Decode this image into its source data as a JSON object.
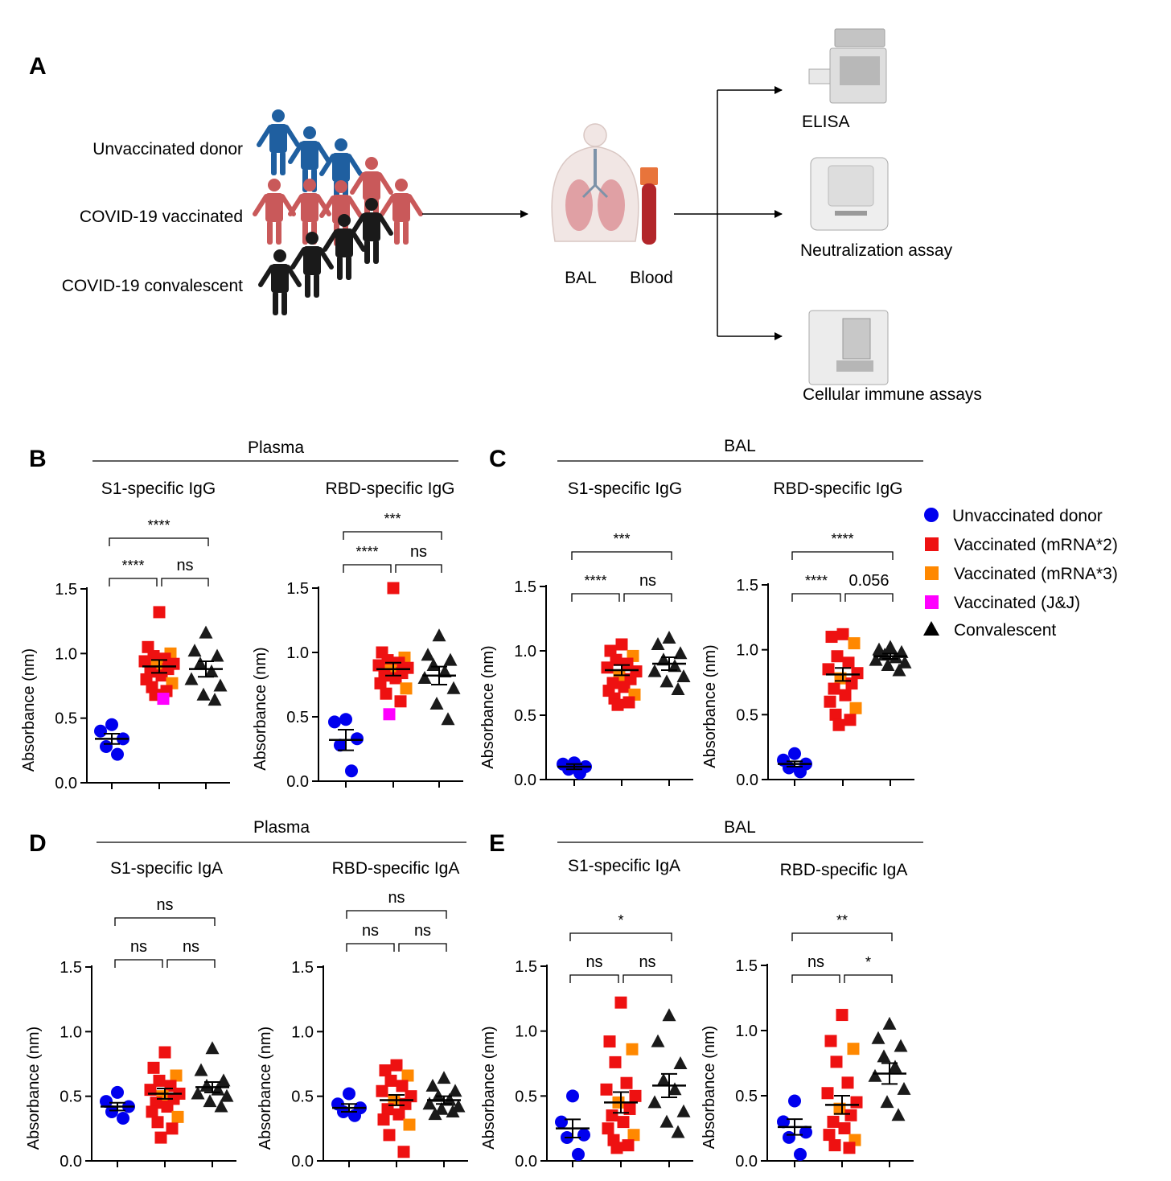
{
  "panel_a": {
    "label": "A",
    "groups": [
      "Unvaccinated donor",
      "COVID-19 vaccinated",
      "COVID-19 convalescent"
    ],
    "samples": [
      "BAL",
      "Blood"
    ],
    "assays": [
      "ELISA",
      "Neutralization assay",
      "Cellular immune assays"
    ]
  },
  "panel_labels": {
    "b": "B",
    "c": "C",
    "d": "D",
    "e": "E"
  },
  "section_titles": {
    "b": "Plasma",
    "c": "BAL",
    "d": "Plasma",
    "e": "BAL"
  },
  "legend": [
    {
      "label": "Unvaccinated donor",
      "shape": "circle",
      "color": "#0000ee"
    },
    {
      "label": "Vaccinated (mRNA*2)",
      "shape": "square",
      "color": "#ee1111"
    },
    {
      "label": "Vaccinated (mRNA*3)",
      "shape": "square",
      "color": "#ff8800"
    },
    {
      "label": "Vaccinated (J&J)",
      "shape": "square",
      "color": "#ff00ff"
    },
    {
      "label": "Convalescent",
      "shape": "triangle",
      "color": "#000000"
    }
  ],
  "colors": {
    "unvaccinated": "#1f5fa0",
    "vaccinated": "#c9595a",
    "convalescent": "#1a1a1a",
    "blue_point": "#0000ee",
    "red_point": "#ee1111",
    "orange_point": "#ff8800",
    "magenta_point": "#ff00ff"
  },
  "chart_data": [
    {
      "type": "scatter",
      "id": "b1",
      "title": "S1-specific IgG",
      "ylabel": "Absorbance (nm)",
      "ylim": [
        0,
        1.5
      ],
      "yticks": [
        "0.0",
        "0.5",
        "1.0",
        "1.5"
      ],
      "series": [
        {
          "name": "Unvaccinated donor",
          "values": [
            0.45,
            0.4,
            0.34,
            0.28,
            0.22
          ],
          "mean": 0.34,
          "sem": 0.04
        },
        {
          "name": "Vaccinated",
          "values": [
            1.32,
            1.05,
            1.0,
            0.98,
            0.96,
            0.94,
            0.92,
            0.9,
            0.88,
            0.86,
            0.83,
            0.8,
            0.77,
            0.74,
            0.71,
            0.68,
            0.65
          ],
          "mean": 0.9,
          "sem": 0.05
        },
        {
          "name": "Convalescent",
          "values": [
            1.16,
            1.02,
            0.98,
            0.92,
            0.86,
            0.8,
            0.75,
            0.68,
            0.64
          ],
          "mean": 0.88,
          "sem": 0.06
        }
      ],
      "significance": [
        {
          "pair": [
            0,
            1
          ],
          "label": "****"
        },
        {
          "pair": [
            1,
            2
          ],
          "label": "ns"
        },
        {
          "pair": [
            0,
            2
          ],
          "label": "****"
        }
      ]
    },
    {
      "type": "scatter",
      "id": "b2",
      "title": "RBD-specific IgG",
      "ylabel": "Absorbance (nm)",
      "ylim": [
        0,
        1.5
      ],
      "yticks": [
        "0.0",
        "0.5",
        "1.0",
        "1.5"
      ],
      "series": [
        {
          "name": "Unvaccinated donor",
          "values": [
            0.48,
            0.46,
            0.33,
            0.28,
            0.08
          ],
          "mean": 0.32,
          "sem": 0.08
        },
        {
          "name": "Vaccinated",
          "values": [
            1.5,
            1.0,
            0.96,
            0.94,
            0.92,
            0.9,
            0.88,
            0.86,
            0.84,
            0.82,
            0.8,
            0.76,
            0.72,
            0.68,
            0.62,
            0.52
          ],
          "mean": 0.87,
          "sem": 0.05
        },
        {
          "name": "Convalescent",
          "values": [
            1.13,
            0.98,
            0.94,
            0.9,
            0.85,
            0.8,
            0.72,
            0.6,
            0.48
          ],
          "mean": 0.82,
          "sem": 0.07
        }
      ],
      "significance": [
        {
          "pair": [
            0,
            1
          ],
          "label": "****"
        },
        {
          "pair": [
            1,
            2
          ],
          "label": "ns"
        },
        {
          "pair": [
            0,
            2
          ],
          "label": "***"
        }
      ]
    },
    {
      "type": "scatter",
      "id": "c1",
      "title": "S1-specific IgG",
      "ylabel": "Absorbance (nm)",
      "ylim": [
        0,
        1.5
      ],
      "yticks": [
        "0.0",
        "0.5",
        "1.0",
        "1.5"
      ],
      "series": [
        {
          "name": "Unvaccinated donor",
          "values": [
            0.13,
            0.12,
            0.1,
            0.08,
            0.05
          ],
          "mean": 0.1,
          "sem": 0.02
        },
        {
          "name": "Vaccinated",
          "values": [
            1.05,
            1.0,
            0.96,
            0.93,
            0.9,
            0.87,
            0.84,
            0.81,
            0.78,
            0.75,
            0.72,
            0.69,
            0.66,
            0.63,
            0.6,
            0.58
          ],
          "mean": 0.85,
          "sem": 0.04
        },
        {
          "name": "Convalescent",
          "values": [
            1.1,
            1.05,
            0.98,
            0.93,
            0.88,
            0.84,
            0.8,
            0.76,
            0.7
          ],
          "mean": 0.9,
          "sem": 0.05
        }
      ],
      "significance": [
        {
          "pair": [
            0,
            1
          ],
          "label": "****"
        },
        {
          "pair": [
            1,
            2
          ],
          "label": "ns"
        },
        {
          "pair": [
            0,
            2
          ],
          "label": "***"
        }
      ]
    },
    {
      "type": "scatter",
      "id": "c2",
      "title": "RBD-specific IgG",
      "ylabel": "Absorbance (nm)",
      "ylim": [
        0,
        1.5
      ],
      "yticks": [
        "0.0",
        "0.5",
        "1.0",
        "1.5"
      ],
      "series": [
        {
          "name": "Unvaccinated donor",
          "values": [
            0.2,
            0.15,
            0.12,
            0.09,
            0.06
          ],
          "mean": 0.12,
          "sem": 0.02
        },
        {
          "name": "Vaccinated",
          "values": [
            1.12,
            1.1,
            1.05,
            0.95,
            0.9,
            0.85,
            0.82,
            0.78,
            0.74,
            0.7,
            0.65,
            0.6,
            0.55,
            0.5,
            0.46,
            0.42
          ],
          "mean": 0.81,
          "sem": 0.05
        },
        {
          "name": "Convalescent",
          "values": [
            1.02,
            1.0,
            0.98,
            0.96,
            0.94,
            0.92,
            0.9,
            0.88,
            0.84
          ],
          "mean": 0.95,
          "sem": 0.02
        }
      ],
      "significance": [
        {
          "pair": [
            0,
            1
          ],
          "label": "****"
        },
        {
          "pair": [
            1,
            2
          ],
          "label": "0.056"
        },
        {
          "pair": [
            0,
            2
          ],
          "label": "****"
        }
      ]
    },
    {
      "type": "scatter",
      "id": "d1",
      "title": "S1-specific IgA",
      "ylabel": "Absorbance (nm)",
      "ylim": [
        0,
        1.5
      ],
      "yticks": [
        "0.0",
        "0.5",
        "1.0",
        "1.5"
      ],
      "series": [
        {
          "name": "Unvaccinated donor",
          "values": [
            0.53,
            0.46,
            0.42,
            0.38,
            0.33
          ],
          "mean": 0.42,
          "sem": 0.03
        },
        {
          "name": "Vaccinated",
          "values": [
            0.84,
            0.72,
            0.66,
            0.62,
            0.58,
            0.55,
            0.52,
            0.5,
            0.48,
            0.45,
            0.42,
            0.38,
            0.34,
            0.3,
            0.25,
            0.18
          ],
          "mean": 0.52,
          "sem": 0.04
        },
        {
          "name": "Convalescent",
          "values": [
            0.87,
            0.7,
            0.62,
            0.58,
            0.55,
            0.52,
            0.5,
            0.46,
            0.42
          ],
          "mean": 0.57,
          "sem": 0.04
        }
      ],
      "significance": [
        {
          "pair": [
            0,
            1
          ],
          "label": "ns"
        },
        {
          "pair": [
            1,
            2
          ],
          "label": "ns"
        },
        {
          "pair": [
            0,
            2
          ],
          "label": "ns"
        }
      ]
    },
    {
      "type": "scatter",
      "id": "d2",
      "title": "RBD-specific IgA",
      "ylabel": "Absorbance (nm)",
      "ylim": [
        0,
        1.5
      ],
      "yticks": [
        "0.0",
        "0.5",
        "1.0",
        "1.5"
      ],
      "series": [
        {
          "name": "Unvaccinated donor",
          "values": [
            0.52,
            0.44,
            0.41,
            0.38,
            0.35
          ],
          "mean": 0.41,
          "sem": 0.03
        },
        {
          "name": "Vaccinated",
          "values": [
            0.74,
            0.7,
            0.66,
            0.62,
            0.58,
            0.54,
            0.5,
            0.47,
            0.44,
            0.4,
            0.36,
            0.32,
            0.28,
            0.2,
            0.07
          ],
          "mean": 0.47,
          "sem": 0.04
        },
        {
          "name": "Convalescent",
          "values": [
            0.64,
            0.58,
            0.54,
            0.5,
            0.47,
            0.44,
            0.42,
            0.4,
            0.38,
            0.36
          ],
          "mean": 0.47,
          "sem": 0.03
        }
      ],
      "significance": [
        {
          "pair": [
            0,
            1
          ],
          "label": "ns"
        },
        {
          "pair": [
            1,
            2
          ],
          "label": "ns"
        },
        {
          "pair": [
            0,
            2
          ],
          "label": "ns"
        }
      ]
    },
    {
      "type": "scatter",
      "id": "e1",
      "title": "S1-specific IgA",
      "ylabel": "Absorbance (nm)",
      "ylim": [
        0,
        1.5
      ],
      "yticks": [
        "0.0",
        "0.5",
        "1.0",
        "1.5"
      ],
      "series": [
        {
          "name": "Unvaccinated donor",
          "values": [
            0.5,
            0.3,
            0.2,
            0.18,
            0.05
          ],
          "mean": 0.25,
          "sem": 0.07
        },
        {
          "name": "Vaccinated",
          "values": [
            1.22,
            0.92,
            0.86,
            0.76,
            0.6,
            0.55,
            0.5,
            0.45,
            0.4,
            0.35,
            0.3,
            0.25,
            0.2,
            0.16,
            0.12,
            0.1
          ],
          "mean": 0.45,
          "sem": 0.08
        },
        {
          "name": "Convalescent",
          "values": [
            1.12,
            0.92,
            0.75,
            0.62,
            0.55,
            0.45,
            0.38,
            0.3,
            0.22
          ],
          "mean": 0.58,
          "sem": 0.09
        }
      ],
      "significance": [
        {
          "pair": [
            0,
            1
          ],
          "label": "ns"
        },
        {
          "pair": [
            1,
            2
          ],
          "label": "ns"
        },
        {
          "pair": [
            0,
            2
          ],
          "label": "*"
        }
      ]
    },
    {
      "type": "scatter",
      "id": "e2",
      "title": "RBD-specific IgA",
      "ylabel": "Absorbance (nm)",
      "ylim": [
        0,
        1.5
      ],
      "yticks": [
        "0.0",
        "0.5",
        "1.0",
        "1.5"
      ],
      "series": [
        {
          "name": "Unvaccinated donor",
          "values": [
            0.46,
            0.3,
            0.22,
            0.18,
            0.05
          ],
          "mean": 0.26,
          "sem": 0.06
        },
        {
          "name": "Vaccinated",
          "values": [
            1.12,
            0.92,
            0.86,
            0.76,
            0.6,
            0.52,
            0.45,
            0.4,
            0.35,
            0.3,
            0.25,
            0.2,
            0.16,
            0.12,
            0.1
          ],
          "mean": 0.43,
          "sem": 0.07
        },
        {
          "name": "Convalescent",
          "values": [
            1.05,
            0.94,
            0.88,
            0.8,
            0.72,
            0.65,
            0.55,
            0.45,
            0.35
          ],
          "mean": 0.67,
          "sem": 0.08
        }
      ],
      "significance": [
        {
          "pair": [
            0,
            1
          ],
          "label": "ns"
        },
        {
          "pair": [
            1,
            2
          ],
          "label": "*"
        },
        {
          "pair": [
            0,
            2
          ],
          "label": "**"
        }
      ]
    }
  ]
}
